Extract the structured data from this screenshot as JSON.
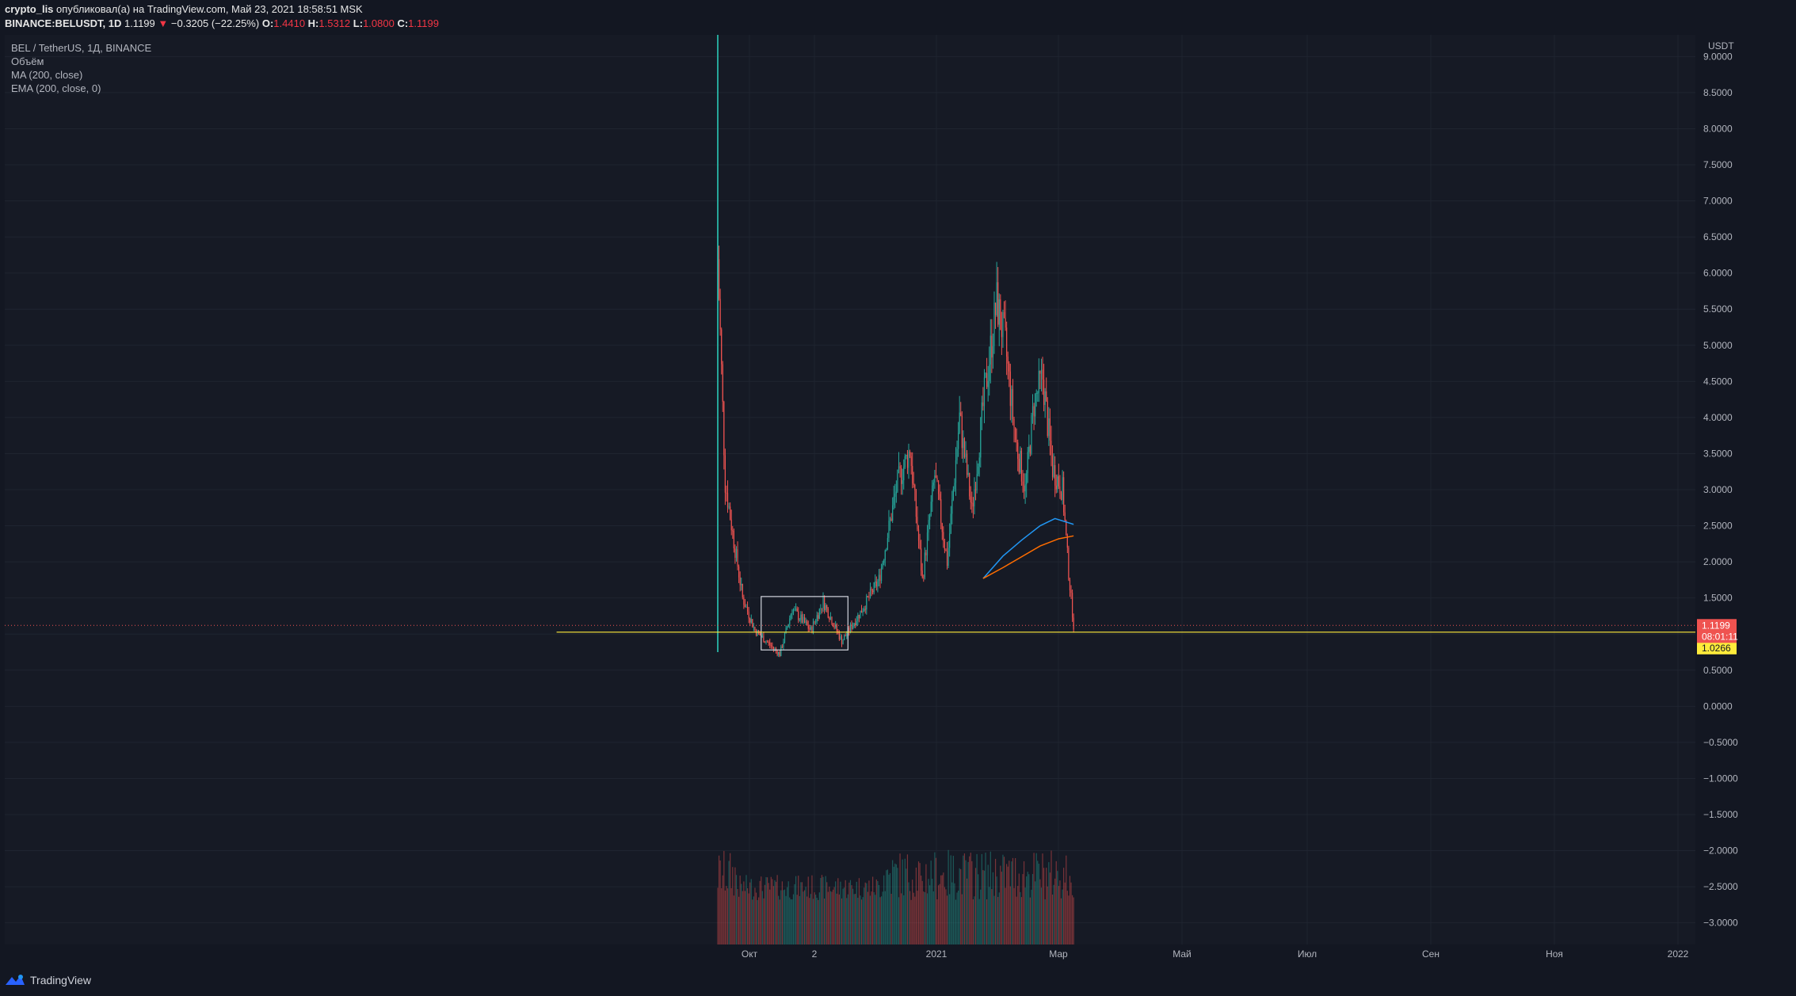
{
  "header": {
    "author": "crypto_lis",
    "published_text": "опубликовал(а) на TradingView.com, Май 23, 2021 18:58:51 MSK",
    "symbol": "BINANCE:BELUSDT, 1D",
    "last": "1.1199",
    "change": "−0.3205 (−22.25%)",
    "o_label": "O:",
    "o_value": "1.4410",
    "h_label": "H:",
    "h_value": "1.5312",
    "l_label": "L:",
    "l_value": "1.0800",
    "c_label": "C:",
    "c_value": "1.1199"
  },
  "legend": {
    "title": "BEL / TetherUS, 1Д, BINANCE",
    "volume": "Объём",
    "ma": "MA (200, close)",
    "ema": "EMA (200, close, 0)"
  },
  "footer": {
    "brand": "TradingView"
  },
  "colors": {
    "up": "#26a69a",
    "down": "#ef5350",
    "ma": "#2196f3",
    "ema": "#ff6d00",
    "level": "#ffeb3b",
    "background": "#161a25"
  },
  "chart_data": {
    "type": "candlestick",
    "currency": "USDT",
    "ylim": [
      -3.3,
      9.3
    ],
    "price_ticks": [
      "9.0000",
      "8.5000",
      "8.0000",
      "7.5000",
      "7.0000",
      "6.5000",
      "6.0000",
      "5.5000",
      "5.0000",
      "4.5000",
      "4.0000",
      "3.5000",
      "3.0000",
      "2.5000",
      "2.0000",
      "1.5000",
      "1.0000",
      "0.5000",
      "0.0000",
      "−0.5000",
      "−1.0000",
      "−1.5000",
      "−2.0000",
      "−2.5000",
      "−3.0000"
    ],
    "time_ticks": [
      "Окт",
      "2",
      "2021",
      "Мар",
      "Май",
      "Июл",
      "Сен",
      "Ноя",
      "2022"
    ],
    "last_price": {
      "value": 1.1199,
      "label": "1.1199",
      "countdown": "08:01:11"
    },
    "level_line": {
      "value": 1.0266,
      "label": "1.0266"
    },
    "range_box": {
      "x_start_day": 35,
      "x_end_day": 105,
      "price_low": 0.78,
      "price_high": 1.52
    },
    "key_points": [
      {
        "day": 0,
        "price": 6.2
      },
      {
        "day": 6,
        "price": 3.1
      },
      {
        "day": 12,
        "price": 2.4
      },
      {
        "day": 20,
        "price": 1.5
      },
      {
        "day": 30,
        "price": 1.05
      },
      {
        "day": 50,
        "price": 0.72
      },
      {
        "day": 60,
        "price": 1.35
      },
      {
        "day": 75,
        "price": 1.05
      },
      {
        "day": 85,
        "price": 1.45
      },
      {
        "day": 100,
        "price": 0.9
      },
      {
        "day": 115,
        "price": 1.3
      },
      {
        "day": 130,
        "price": 1.75
      },
      {
        "day": 145,
        "price": 3.1
      },
      {
        "day": 155,
        "price": 3.55
      },
      {
        "day": 165,
        "price": 1.75
      },
      {
        "day": 175,
        "price": 3.2
      },
      {
        "day": 185,
        "price": 2.0
      },
      {
        "day": 195,
        "price": 4.0
      },
      {
        "day": 205,
        "price": 2.7
      },
      {
        "day": 215,
        "price": 4.3
      },
      {
        "day": 225,
        "price": 5.6
      },
      {
        "day": 232,
        "price": 5.0
      },
      {
        "day": 240,
        "price": 3.7
      },
      {
        "day": 248,
        "price": 3.0
      },
      {
        "day": 255,
        "price": 4.2
      },
      {
        "day": 262,
        "price": 4.55
      },
      {
        "day": 270,
        "price": 3.3
      },
      {
        "day": 278,
        "price": 3.0
      },
      {
        "day": 283,
        "price": 1.85
      },
      {
        "day": 287,
        "price": 1.12
      }
    ],
    "ma_line": [
      {
        "day": 214,
        "price": 1.77
      },
      {
        "day": 230,
        "price": 2.08
      },
      {
        "day": 245,
        "price": 2.3
      },
      {
        "day": 260,
        "price": 2.5
      },
      {
        "day": 272,
        "price": 2.6
      },
      {
        "day": 287,
        "price": 2.52
      }
    ],
    "ema_line": [
      {
        "day": 214,
        "price": 1.77
      },
      {
        "day": 230,
        "price": 1.92
      },
      {
        "day": 245,
        "price": 2.07
      },
      {
        "day": 260,
        "price": 2.22
      },
      {
        "day": 275,
        "price": 2.32
      },
      {
        "day": 287,
        "price": 2.36
      }
    ]
  }
}
